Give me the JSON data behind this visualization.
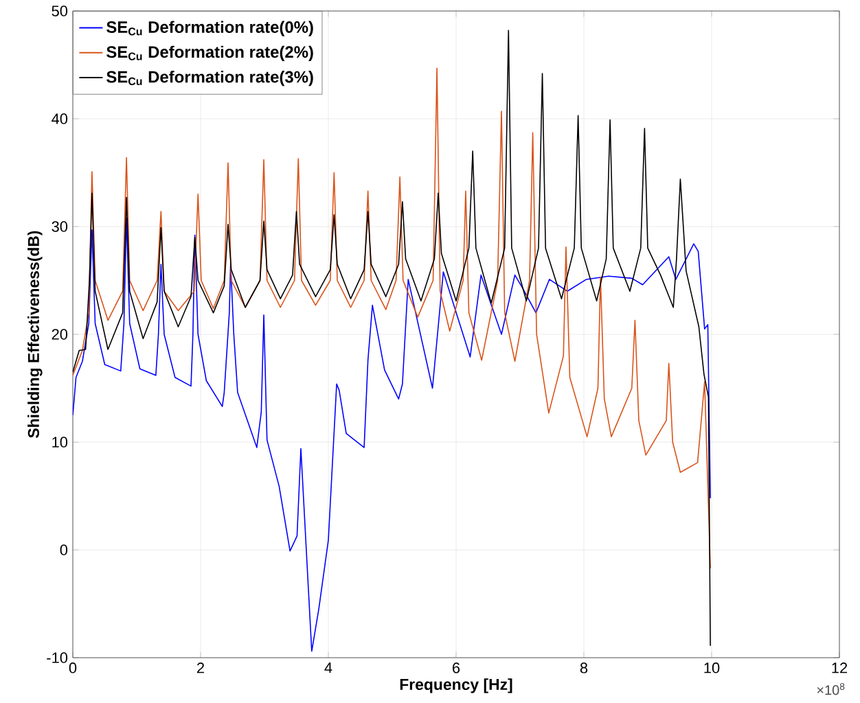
{
  "chart_data": {
    "type": "line",
    "xlabel": "Frequency [Hz]",
    "ylabel": "Shielding Effectiveness(dB)",
    "xlim": [
      0,
      12
    ],
    "ylim": [
      -10,
      50
    ],
    "xticks": [
      0,
      2,
      4,
      6,
      8,
      10,
      12
    ],
    "yticks": [
      -10,
      0,
      10,
      20,
      30,
      40,
      50
    ],
    "grid": true,
    "legend": "top left",
    "line_style": "solid",
    "annotations": [
      "×10$^{8}$"
    ],
    "series": [
      {
        "name": "SE$_{Cu}$ Deformation rate(0%)",
        "color": "#0000ff",
        "x": [
          0,
          0.05,
          0.15,
          0.25,
          0.3,
          0.35,
          0.5,
          0.75,
          0.8,
          0.84,
          0.89,
          1.05,
          1.3,
          1.34,
          1.38,
          1.43,
          1.6,
          1.85,
          1.88,
          1.91,
          1.96,
          2.09,
          2.34,
          2.37,
          2.45,
          2.47,
          2.52,
          2.58,
          2.88,
          2.95,
          2.99,
          3.04,
          3.23,
          3.4,
          3.51,
          3.57,
          3.74,
          3.85,
          4.0,
          4.13,
          4.17,
          4.28,
          4.56,
          4.62,
          4.69,
          4.88,
          5.1,
          5.16,
          5.25,
          5.63,
          5.8,
          6.22,
          6.39,
          6.71,
          6.92,
          7.03,
          7.25,
          7.46,
          7.74,
          8.04,
          8.39,
          8.75,
          8.92,
          9.33,
          9.44,
          9.72,
          9.79,
          9.89,
          9.94,
          9.98
        ],
        "values": [
          12.5,
          16,
          17.5,
          21,
          29.7,
          21,
          17.2,
          16.6,
          21,
          30.8,
          21,
          16.8,
          16.2,
          20,
          26.5,
          20,
          16,
          15.2,
          20,
          29.2,
          20,
          15.7,
          13.3,
          14.6,
          22,
          26.6,
          20,
          14.6,
          9.5,
          12.8,
          21.8,
          10.2,
          5.9,
          -0.1,
          1.3,
          9.4,
          -9.4,
          -5.5,
          0.9,
          15.4,
          14.8,
          10.8,
          9.5,
          17.6,
          22.7,
          16.7,
          14.0,
          15.4,
          25.1,
          15.0,
          25.8,
          17.9,
          25.5,
          20.0,
          25.5,
          24.4,
          22.0,
          25.1,
          24.0,
          25.1,
          25.4,
          25.2,
          24.6,
          27.2,
          25.1,
          28.4,
          27.7,
          20.5,
          20.9,
          4.8
        ]
      },
      {
        "name": "SE$_{Cu}$ Deformation rate(2%)",
        "color": "#d95319",
        "x": [
          0,
          0.15,
          0.25,
          0.3,
          0.35,
          0.55,
          0.78,
          0.84,
          0.89,
          1.1,
          1.32,
          1.38,
          1.43,
          1.65,
          1.9,
          1.96,
          2.01,
          2.2,
          2.37,
          2.43,
          2.48,
          2.7,
          2.93,
          2.99,
          3.04,
          3.25,
          3.47,
          3.53,
          3.58,
          3.8,
          4.03,
          4.09,
          4.14,
          4.35,
          4.56,
          4.62,
          4.67,
          4.9,
          5.06,
          5.12,
          5.17,
          5.4,
          5.64,
          5.7,
          5.75,
          5.9,
          6.11,
          6.15,
          6.2,
          6.4,
          6.65,
          6.71,
          6.76,
          6.92,
          7.15,
          7.2,
          7.26,
          7.45,
          7.68,
          7.72,
          7.78,
          8.05,
          8.22,
          8.26,
          8.32,
          8.43,
          8.75,
          8.8,
          8.86,
          8.97,
          9.29,
          9.33,
          9.39,
          9.51,
          9.78,
          9.89,
          9.98
        ],
        "values": [
          16.2,
          18.5,
          22,
          35.1,
          25,
          21.3,
          24,
          36.4,
          25,
          22.2,
          25,
          31.4,
          24,
          22.2,
          24,
          33.0,
          25,
          22.4,
          25,
          35.9,
          25,
          22.5,
          25,
          36.2,
          25,
          22.5,
          25,
          36.3,
          25,
          22.7,
          25,
          35.0,
          25,
          22.5,
          25,
          33.3,
          25,
          22.3,
          25,
          34.6,
          25,
          21.6,
          25,
          44.7,
          24,
          20.3,
          25,
          33.3,
          22,
          17.6,
          25,
          40.7,
          22,
          17.5,
          25,
          38.7,
          20,
          12.7,
          18,
          28.1,
          16,
          10.5,
          15,
          25.3,
          14,
          10.5,
          15,
          21.3,
          12,
          8.8,
          12,
          17.3,
          10,
          7.2,
          8.1,
          15.6,
          -1.7
        ]
      },
      {
        "name": "SE$_{Cu}$ Deformation rate(3%)",
        "color": "#000000",
        "x": [
          0,
          0.1,
          0.2,
          0.26,
          0.3,
          0.35,
          0.55,
          0.78,
          0.84,
          0.89,
          1.1,
          1.32,
          1.38,
          1.43,
          1.65,
          1.85,
          1.91,
          1.96,
          2.2,
          2.37,
          2.43,
          2.48,
          2.7,
          2.93,
          2.99,
          3.04,
          3.25,
          3.44,
          3.5,
          3.55,
          3.8,
          4.03,
          4.09,
          4.14,
          4.35,
          4.56,
          4.62,
          4.67,
          4.9,
          5.1,
          5.16,
          5.21,
          5.45,
          5.66,
          5.72,
          5.77,
          6.0,
          6.2,
          6.26,
          6.31,
          6.55,
          6.76,
          6.82,
          6.87,
          7.1,
          7.29,
          7.35,
          7.4,
          7.65,
          7.85,
          7.91,
          7.96,
          8.2,
          8.35,
          8.41,
          8.46,
          8.72,
          8.89,
          8.95,
          9.0,
          9.2,
          9.4,
          9.45,
          9.51,
          9.6,
          9.8,
          9.88,
          9.95,
          9.98
        ],
        "values": [
          16.5,
          18.5,
          18.6,
          25,
          33.1,
          24,
          18.6,
          22,
          32.7,
          24,
          19.6,
          23,
          29.9,
          24,
          20.7,
          23.5,
          29.0,
          25,
          22.0,
          24.5,
          30.2,
          26,
          22.5,
          25,
          30.5,
          26,
          23.3,
          25.5,
          31.4,
          26.5,
          23.5,
          26,
          31.1,
          26.5,
          23.3,
          26,
          31.4,
          26.5,
          23.5,
          26.5,
          32.3,
          27,
          23.1,
          27,
          33.1,
          27.5,
          23.1,
          28,
          37.0,
          28,
          22.9,
          28,
          48.2,
          28,
          23.1,
          28,
          44.2,
          28,
          23.3,
          28,
          40.3,
          28,
          23.1,
          27,
          39.9,
          28,
          24.0,
          28,
          39.1,
          28,
          25.5,
          22.5,
          27,
          34.4,
          25.9,
          20.7,
          16.3,
          14.2,
          -8.9
        ]
      }
    ]
  }
}
